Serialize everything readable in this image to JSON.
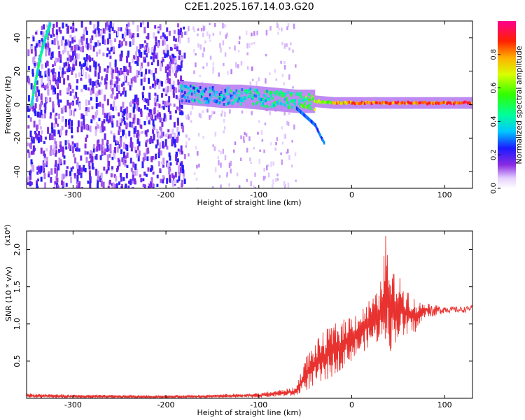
{
  "title": "C2E1.2025.167.14.03.G20",
  "colorbar": {
    "label": "Normalized spectral amplitude",
    "range": [
      0,
      1
    ],
    "ticks": [
      0.0,
      0.2,
      0.4,
      0.6,
      0.8
    ],
    "tick_labels": [
      "0.0",
      "0.2",
      "0.4",
      "0.6",
      "0.8"
    ]
  },
  "chart_data": [
    {
      "type": "heatmap",
      "name": "spectrogram",
      "xlabel": "Height of straight line (km)",
      "ylabel": "Frequency (Hz)",
      "xlim": [
        -350,
        130
      ],
      "ylim": [
        -50,
        50
      ],
      "x_ticks": [
        -300,
        -200,
        -100,
        0,
        100
      ],
      "y_ticks": [
        -40,
        -20,
        0,
        20,
        40
      ],
      "y_tick_labels": [
        "-40",
        "-20",
        "0",
        "20",
        "40"
      ],
      "colormap": "rainbow (white-violet-blue-cyan-green-yellow-red-magenta)",
      "ridge": {
        "x": [
          -180,
          -160,
          -140,
          -120,
          -100,
          -80,
          -60,
          -40,
          -20,
          0,
          20,
          40,
          60,
          80,
          100,
          130
        ],
        "frequency": [
          7,
          6,
          5,
          5,
          4,
          3,
          2,
          2,
          1,
          1,
          1,
          1,
          1,
          1,
          1,
          1
        ],
        "amplitude": [
          0.35,
          0.35,
          0.35,
          0.4,
          0.4,
          0.45,
          0.45,
          0.6,
          0.7,
          0.8,
          0.85,
          0.85,
          0.85,
          0.85,
          0.85,
          0.85
        ]
      },
      "lower_branch": {
        "x": [
          -60,
          -50,
          -40,
          -35,
          -30
        ],
        "frequency": [
          -2,
          -7,
          -12,
          -18,
          -23
        ]
      },
      "edge_streak": {
        "x": [
          -345,
          -340,
          -335,
          -330,
          -325
        ],
        "frequency": [
          0,
          16,
          30,
          40,
          48
        ]
      },
      "noise_region": {
        "x": [
          -350,
          -180
        ],
        "amplitude": "0.1-0.25"
      }
    },
    {
      "type": "line",
      "name": "snr",
      "xlabel": "Height of straight line (km)",
      "ylabel": "SNR (10 * v/v)",
      "y_multiplier_label": "(x10⁴)",
      "xlim": [
        -350,
        130
      ],
      "ylim": [
        0,
        2.25
      ],
      "x_ticks": [
        -300,
        -200,
        -100,
        0,
        100
      ],
      "y_ticks": [
        0.5,
        1.0,
        1.5,
        2.0
      ],
      "y_tick_labels": [
        "0.5",
        "1.0",
        "1.5",
        "2.0"
      ],
      "color": "#e8322f",
      "envelope": {
        "x": [
          -350,
          -300,
          -200,
          -160,
          -100,
          -60,
          -50,
          -40,
          -30,
          -20,
          -10,
          0,
          10,
          20,
          30,
          37,
          40,
          50,
          60,
          70,
          80,
          90,
          100,
          110,
          120,
          130
        ],
        "y_min": [
          0.0,
          0.0,
          0.0,
          0.0,
          0.01,
          0.03,
          0.1,
          0.15,
          0.2,
          0.3,
          0.4,
          0.5,
          0.6,
          0.7,
          0.75,
          0.8,
          0.6,
          0.8,
          0.8,
          0.9,
          1.1,
          1.1,
          1.15,
          1.15,
          1.15,
          1.18
        ],
        "y_max": [
          0.07,
          0.05,
          0.04,
          0.05,
          0.07,
          0.15,
          0.55,
          0.75,
          0.9,
          1.0,
          1.05,
          1.15,
          1.2,
          1.35,
          1.45,
          2.25,
          1.75,
          1.65,
          1.5,
          1.3,
          1.3,
          1.25,
          1.25,
          1.23,
          1.23,
          1.25
        ]
      }
    }
  ]
}
